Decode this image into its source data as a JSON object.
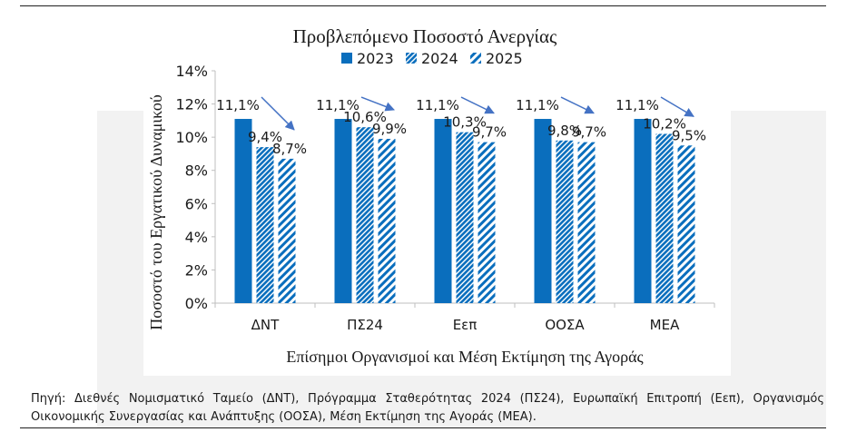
{
  "chart_data": {
    "type": "bar",
    "title": "Προβλεπόμενο Ποσοστό Ανεργίας",
    "xlabel": "Επίσημοι Οργανισμοί και Μέση Εκτίμηση της Αγοράς",
    "ylabel": "Ποσοστό του Εργατικού Δυναμικού",
    "categories": [
      "ΔΝΤ",
      "ΠΣ24",
      "Εεπ",
      "ΟΟΣΑ",
      "ΜΕΑ"
    ],
    "series": [
      {
        "name": "2023",
        "values": [
          11.1,
          11.1,
          11.1,
          11.1,
          11.1
        ],
        "labels": [
          "11,1%",
          "11,1%",
          "11,1%",
          "11,1%",
          "11,1%"
        ],
        "fill": "solid"
      },
      {
        "name": "2024",
        "values": [
          9.4,
          10.6,
          10.3,
          9.8,
          10.2
        ],
        "labels": [
          "9,4%",
          "10,6%",
          "10,3%",
          "9,8%",
          "10,2%"
        ],
        "fill": "dense-hatch"
      },
      {
        "name": "2025",
        "values": [
          8.7,
          9.9,
          9.7,
          9.7,
          9.5
        ],
        "labels": [
          "8,7%",
          "9,9%",
          "9,7%",
          "9,7%",
          "9,5%"
        ],
        "fill": "wide-hatch"
      }
    ],
    "ylim": [
      0,
      14
    ],
    "yticks": [
      "0%",
      "2%",
      "4%",
      "6%",
      "8%",
      "10%",
      "12%",
      "14%"
    ],
    "legend": "top",
    "grid": false,
    "annotations": "downward arrows from 2023 to 2025 bars in each group",
    "colors": {
      "bar": "#0a6ebd",
      "arrow": "#4472c4",
      "axis": "#bfbfbf"
    }
  },
  "note": {
    "text": "Πηγή: Διεθνές Νομισματικό Ταμείο (ΔΝΤ), Πρόγραμμα Σταθερότητας 2024 (ΠΣ24), Ευρωπαϊκή Επιτροπή (Εεπ), Οργανισμός Οικονομικής Συνεργασίας και Ανάπτυξης (ΟΟΣΑ), Μέση Εκτίμηση της Αγοράς (ΜΕΑ)."
  }
}
